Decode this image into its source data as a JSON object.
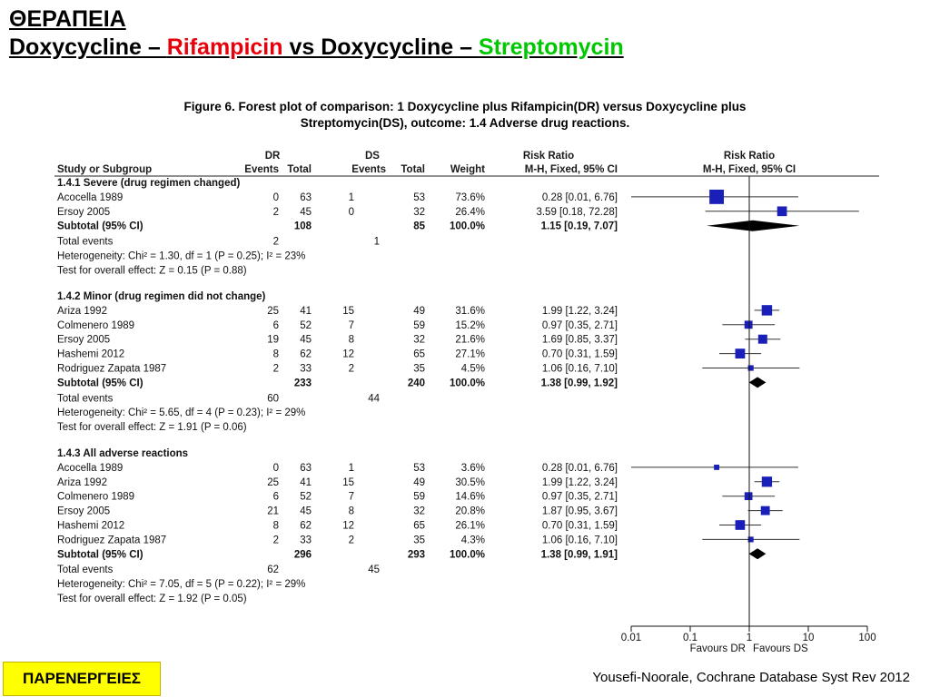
{
  "slide": {
    "title_line1": "ΘΕΡΑΠΕΙΑ",
    "title_line2_parts": [
      {
        "text": "Doxycycline – ",
        "color": "#000000"
      },
      {
        "text": "Rifampicin",
        "color": "#e8000b"
      },
      {
        "text": " vs Doxycycline – ",
        "color": "#000000"
      },
      {
        "text": "Streptomycin",
        "color": "#00c800"
      }
    ],
    "badge_label": "ΠΑΡΕΝΕΡΓΕΙΕΣ",
    "badge_color": "#ffff00",
    "citation": "Yousefi-Noorale, Cochrane Database Syst Rev 2012"
  },
  "chart_data": {
    "type": "forest",
    "figure_caption_line1": "Figure 6.   Forest plot of comparison: 1 Doxycycline plus Rifampicin(DR) versus Doxycycline plus",
    "figure_caption_line2": "Streptomycin(DS), outcome: 1.4 Adverse drug reactions.",
    "header": {
      "group_dr": "DR",
      "group_ds": "DS",
      "risk_ratio": "Risk Ratio",
      "study": "Study or Subgroup",
      "events": "Events",
      "total": "Total",
      "weight": "Weight",
      "method": "M-H, Fixed, 95% CI"
    },
    "x_axis": {
      "scale": "log",
      "range": [
        0.01,
        100
      ],
      "ticks": [
        0.01,
        0.1,
        1,
        10,
        100
      ],
      "tick_labels": [
        "0.01",
        "0.1",
        "1",
        "10",
        "100"
      ],
      "favours_left": "Favours DR",
      "favours_right": "Favours DS"
    },
    "marker_color": "#1a1fb8",
    "subgroups": [
      {
        "title": "1.4.1 Severe (drug regimen changed)",
        "studies": [
          {
            "name": "Acocella 1989",
            "dr_events": "0",
            "dr_total": "63",
            "ds_events": "1",
            "ds_total": "53",
            "weight": "73.6%",
            "ci_text": "0.28 [0.01, 6.76]",
            "rr": 0.28,
            "lo": 0.01,
            "hi": 6.76
          },
          {
            "name": "Ersoy 2005",
            "dr_events": "2",
            "dr_total": "45",
            "ds_events": "0",
            "ds_total": "32",
            "weight": "26.4%",
            "ci_text": "3.59 [0.18, 72.28]",
            "rr": 3.59,
            "lo": 0.18,
            "hi": 72.28
          }
        ],
        "subtotal": {
          "label": "Subtotal (95% CI)",
          "dr_total": "108",
          "ds_total": "85",
          "weight": "100.0%",
          "ci_text": "1.15 [0.19, 7.07]",
          "rr": 1.15,
          "lo": 0.19,
          "hi": 7.07
        },
        "total_events": {
          "label": "Total events",
          "dr": "2",
          "ds": "1"
        },
        "heterogeneity": "Heterogeneity: Chi² = 1.30, df = 1 (P = 0.25); I² = 23%",
        "overall_effect": "Test for overall effect: Z = 0.15 (P = 0.88)"
      },
      {
        "title": "1.4.2 Minor (drug regimen did not change)",
        "studies": [
          {
            "name": "Ariza 1992",
            "dr_events": "25",
            "dr_total": "41",
            "ds_events": "15",
            "ds_total": "49",
            "weight": "31.6%",
            "ci_text": "1.99 [1.22, 3.24]",
            "rr": 1.99,
            "lo": 1.22,
            "hi": 3.24
          },
          {
            "name": "Colmenero 1989",
            "dr_events": "6",
            "dr_total": "52",
            "ds_events": "7",
            "ds_total": "59",
            "weight": "15.2%",
            "ci_text": "0.97 [0.35, 2.71]",
            "rr": 0.97,
            "lo": 0.35,
            "hi": 2.71
          },
          {
            "name": "Ersoy 2005",
            "dr_events": "19",
            "dr_total": "45",
            "ds_events": "8",
            "ds_total": "32",
            "weight": "21.6%",
            "ci_text": "1.69 [0.85, 3.37]",
            "rr": 1.69,
            "lo": 0.85,
            "hi": 3.37
          },
          {
            "name": "Hashemi 2012",
            "dr_events": "8",
            "dr_total": "62",
            "ds_events": "12",
            "ds_total": "65",
            "weight": "27.1%",
            "ci_text": "0.70 [0.31, 1.59]",
            "rr": 0.7,
            "lo": 0.31,
            "hi": 1.59
          },
          {
            "name": "Rodriguez Zapata 1987",
            "dr_events": "2",
            "dr_total": "33",
            "ds_events": "2",
            "ds_total": "35",
            "weight": "4.5%",
            "ci_text": "1.06 [0.16, 7.10]",
            "rr": 1.06,
            "lo": 0.16,
            "hi": 7.1
          }
        ],
        "subtotal": {
          "label": "Subtotal (95% CI)",
          "dr_total": "233",
          "ds_total": "240",
          "weight": "100.0%",
          "ci_text": "1.38 [0.99, 1.92]",
          "rr": 1.38,
          "lo": 0.99,
          "hi": 1.92
        },
        "total_events": {
          "label": "Total events",
          "dr": "60",
          "ds": "44"
        },
        "heterogeneity": "Heterogeneity: Chi² = 5.65, df = 4 (P = 0.23); I² = 29%",
        "overall_effect": "Test for overall effect: Z = 1.91 (P = 0.06)"
      },
      {
        "title": "1.4.3 All adverse reactions",
        "studies": [
          {
            "name": "Acocella 1989",
            "dr_events": "0",
            "dr_total": "63",
            "ds_events": "1",
            "ds_total": "53",
            "weight": "3.6%",
            "ci_text": "0.28 [0.01, 6.76]",
            "rr": 0.28,
            "lo": 0.01,
            "hi": 6.76
          },
          {
            "name": "Ariza 1992",
            "dr_events": "25",
            "dr_total": "41",
            "ds_events": "15",
            "ds_total": "49",
            "weight": "30.5%",
            "ci_text": "1.99 [1.22, 3.24]",
            "rr": 1.99,
            "lo": 1.22,
            "hi": 3.24
          },
          {
            "name": "Colmenero 1989",
            "dr_events": "6",
            "dr_total": "52",
            "ds_events": "7",
            "ds_total": "59",
            "weight": "14.6%",
            "ci_text": "0.97 [0.35, 2.71]",
            "rr": 0.97,
            "lo": 0.35,
            "hi": 2.71
          },
          {
            "name": "Ersoy 2005",
            "dr_events": "21",
            "dr_total": "45",
            "ds_events": "8",
            "ds_total": "32",
            "weight": "20.8%",
            "ci_text": "1.87 [0.95, 3.67]",
            "rr": 1.87,
            "lo": 0.95,
            "hi": 3.67
          },
          {
            "name": "Hashemi 2012",
            "dr_events": "8",
            "dr_total": "62",
            "ds_events": "12",
            "ds_total": "65",
            "weight": "26.1%",
            "ci_text": "0.70 [0.31, 1.59]",
            "rr": 0.7,
            "lo": 0.31,
            "hi": 1.59
          },
          {
            "name": "Rodriguez Zapata 1987",
            "dr_events": "2",
            "dr_total": "33",
            "ds_events": "2",
            "ds_total": "35",
            "weight": "4.3%",
            "ci_text": "1.06 [0.16, 7.10]",
            "rr": 1.06,
            "lo": 0.16,
            "hi": 7.1
          }
        ],
        "subtotal": {
          "label": "Subtotal (95% CI)",
          "dr_total": "296",
          "ds_total": "293",
          "weight": "100.0%",
          "ci_text": "1.38 [0.99, 1.91]",
          "rr": 1.38,
          "lo": 0.99,
          "hi": 1.91
        },
        "total_events": {
          "label": "Total events",
          "dr": "62",
          "ds": "45"
        },
        "heterogeneity": "Heterogeneity: Chi² = 7.05, df = 5 (P = 0.22); I² = 29%",
        "overall_effect": "Test for overall effect: Z = 1.92 (P = 0.05)"
      }
    ]
  }
}
